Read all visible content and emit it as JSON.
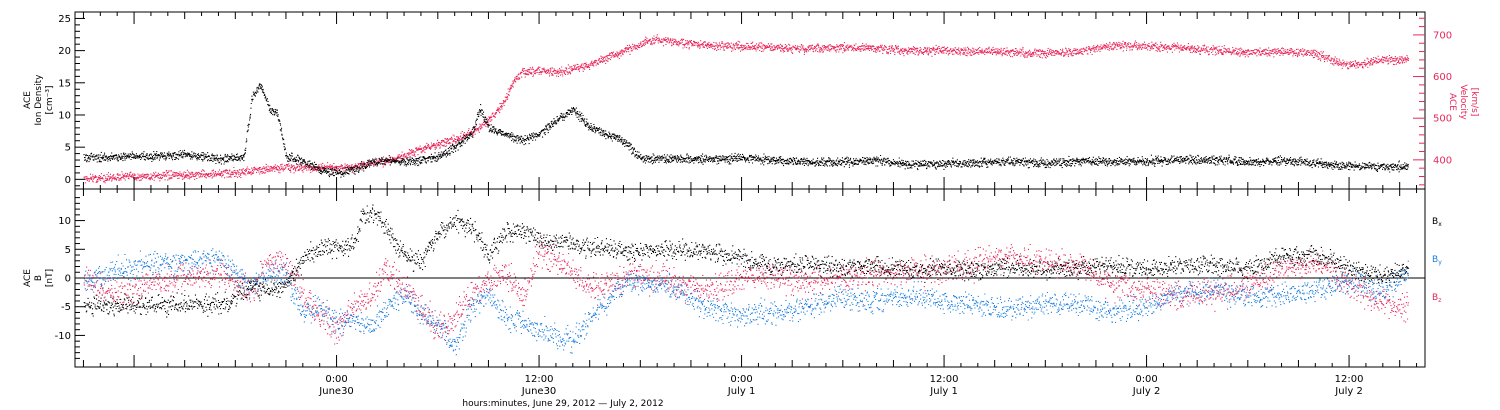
{
  "colors": {
    "black": "#000000",
    "pink": "#e8285a",
    "blue": "#1e7fe0"
  },
  "chart_data": [
    {
      "type": "scatter",
      "panel": "top",
      "ylabel_left": [
        "ACE",
        "Ion Density",
        "[cm⁻³]"
      ],
      "ylabel_right": [
        "ACE",
        "Velocity",
        "[km/s]"
      ],
      "ylim_left": [
        -1.5,
        26
      ],
      "ylim_right": [
        330,
        755
      ],
      "yticks_left": [
        0,
        5,
        10,
        15,
        20,
        25
      ],
      "yticks_right": [
        400,
        500,
        600,
        700
      ],
      "xlim_hours": [
        -15.5,
        64.5
      ],
      "series": [
        {
          "axis": "left",
          "color": "black",
          "jitter": 0.6,
          "points": [
            [
              -15,
              3.3
            ],
            [
              -12,
              3.5
            ],
            [
              -9,
              3.8
            ],
            [
              -7,
              3.2
            ],
            [
              -5.5,
              3.4
            ],
            [
              -5,
              13
            ],
            [
              -4.5,
              14.5
            ],
            [
              -4,
              11
            ],
            [
              -3.5,
              10
            ],
            [
              -3,
              3.5
            ],
            [
              -2,
              2.8
            ],
            [
              -1,
              1.5
            ],
            [
              0,
              1.0
            ],
            [
              1,
              1.4
            ],
            [
              2,
              2.5
            ],
            [
              3,
              3.0
            ],
            [
              4,
              2.8
            ],
            [
              5,
              3.0
            ],
            [
              6,
              3.5
            ],
            [
              7,
              5
            ],
            [
              8,
              7
            ],
            [
              8.5,
              11
            ],
            [
              9,
              8
            ],
            [
              10,
              7
            ],
            [
              11,
              6
            ],
            [
              12,
              7
            ],
            [
              13,
              9
            ],
            [
              14,
              11
            ],
            [
              15,
              8
            ],
            [
              16,
              7
            ],
            [
              17,
              6
            ],
            [
              18,
              3.2
            ],
            [
              20,
              3.2
            ],
            [
              22,
              3.0
            ],
            [
              24,
              3.3
            ],
            [
              26,
              3.0
            ],
            [
              28,
              2.6
            ],
            [
              30,
              2.7
            ],
            [
              32,
              2.9
            ],
            [
              34,
              2.3
            ],
            [
              36,
              2.4
            ],
            [
              38,
              2.6
            ],
            [
              40,
              2.8
            ],
            [
              42,
              2.5
            ],
            [
              44,
              2.8
            ],
            [
              46,
              2.7
            ],
            [
              48,
              2.8
            ],
            [
              50,
              3.0
            ],
            [
              52,
              3.0
            ],
            [
              54,
              2.6
            ],
            [
              56,
              2.9
            ],
            [
              58,
              2.5
            ],
            [
              60,
              2.1
            ],
            [
              62,
              1.9
            ],
            [
              63.5,
              2.0
            ]
          ]
        },
        {
          "axis": "right",
          "color": "pink",
          "jitter": 9,
          "points": [
            [
              -15,
              355
            ],
            [
              -12,
              360
            ],
            [
              -9,
              363
            ],
            [
              -6,
              368
            ],
            [
              -4,
              378
            ],
            [
              -3,
              382
            ],
            [
              -2,
              380
            ],
            [
              -1,
              380
            ],
            [
              0,
              380
            ],
            [
              1,
              382
            ],
            [
              2,
              390
            ],
            [
              3,
              398
            ],
            [
              4,
              410
            ],
            [
              5,
              425
            ],
            [
              6,
              438
            ],
            [
              7,
              448
            ],
            [
              8,
              465
            ],
            [
              9,
              495
            ],
            [
              9.8,
              530
            ],
            [
              10.5,
              590
            ],
            [
              11,
              610
            ],
            [
              12,
              615
            ],
            [
              13,
              610
            ],
            [
              14,
              618
            ],
            [
              15,
              628
            ],
            [
              16,
              645
            ],
            [
              17,
              660
            ],
            [
              18,
              678
            ],
            [
              19,
              690
            ],
            [
              20,
              682
            ],
            [
              22,
              675
            ],
            [
              24,
              672
            ],
            [
              26,
              670
            ],
            [
              28,
              665
            ],
            [
              30,
              670
            ],
            [
              32,
              668
            ],
            [
              34,
              662
            ],
            [
              36,
              663
            ],
            [
              38,
              660
            ],
            [
              40,
              658
            ],
            [
              42,
              655
            ],
            [
              44,
              660
            ],
            [
              46,
              675
            ],
            [
              48,
              672
            ],
            [
              50,
              668
            ],
            [
              52,
              662
            ],
            [
              54,
              658
            ],
            [
              56,
              660
            ],
            [
              58,
              655
            ],
            [
              59,
              638
            ],
            [
              60,
              628
            ],
            [
              61,
              632
            ],
            [
              62,
              640
            ],
            [
              63.5,
              642
            ]
          ]
        }
      ]
    },
    {
      "type": "scatter",
      "panel": "bottom",
      "ylabel": [
        "ACE",
        "B",
        "[nT]"
      ],
      "ylim": [
        -15.5,
        15.5
      ],
      "yticks": [
        -10,
        -5,
        0,
        5,
        10
      ],
      "zero_line": true,
      "legend": [
        {
          "text": "B",
          "sub": "x",
          "color": "black"
        },
        {
          "text": "B",
          "sub": "y",
          "color": "blue"
        },
        {
          "text": "B",
          "sub": "z",
          "color": "pink"
        }
      ],
      "series": [
        {
          "name": "Bx",
          "color": "black",
          "jitter": 1.5,
          "points": [
            [
              -15,
              -4.8
            ],
            [
              -12,
              -4.8
            ],
            [
              -9,
              -4.6
            ],
            [
              -7,
              -4.4
            ],
            [
              -6,
              -3.5
            ],
            [
              -5,
              -1.5
            ],
            [
              -4,
              -2.2
            ],
            [
              -3,
              -1.2
            ],
            [
              -2,
              3
            ],
            [
              -1,
              5.5
            ],
            [
              0,
              5.2
            ],
            [
              1,
              5.8
            ],
            [
              1.5,
              11
            ],
            [
              2.5,
              11
            ],
            [
              3,
              8
            ],
            [
              4,
              4
            ],
            [
              5,
              2.5
            ],
            [
              6,
              8
            ],
            [
              7,
              10
            ],
            [
              8,
              9
            ],
            [
              9,
              4
            ],
            [
              10,
              8
            ],
            [
              11,
              8
            ],
            [
              12,
              7
            ],
            [
              13,
              6
            ],
            [
              14,
              6
            ],
            [
              15,
              5
            ],
            [
              16,
              5.2
            ],
            [
              17,
              4.8
            ],
            [
              18,
              4.5
            ],
            [
              20,
              5
            ],
            [
              22,
              4.5
            ],
            [
              24,
              3.5
            ],
            [
              26,
              2
            ],
            [
              28,
              2.5
            ],
            [
              30,
              1.8
            ],
            [
              32,
              2.2
            ],
            [
              34,
              1.2
            ],
            [
              36,
              1.5
            ],
            [
              38,
              1.2
            ],
            [
              40,
              1.8
            ],
            [
              42,
              1.4
            ],
            [
              44,
              1.8
            ],
            [
              46,
              2.2
            ],
            [
              48,
              1.5
            ],
            [
              50,
              2
            ],
            [
              52,
              2.2
            ],
            [
              54,
              1.8
            ],
            [
              56,
              3.5
            ],
            [
              58,
              4
            ],
            [
              60,
              1.5
            ],
            [
              62,
              0.5
            ],
            [
              63.5,
              1
            ]
          ]
        },
        {
          "name": "By",
          "color": "blue",
          "jitter": 1.8,
          "points": [
            [
              -15,
              -1
            ],
            [
              -13,
              1.5
            ],
            [
              -11,
              2.5
            ],
            [
              -9,
              3
            ],
            [
              -7,
              3.5
            ],
            [
              -6,
              1
            ],
            [
              -5,
              -1.5
            ],
            [
              -4,
              1
            ],
            [
              -3,
              0.5
            ],
            [
              -2,
              -6.5
            ],
            [
              -1,
              -5
            ],
            [
              0,
              -8
            ],
            [
              1,
              -7
            ],
            [
              2,
              -9
            ],
            [
              3,
              -5
            ],
            [
              4,
              -3
            ],
            [
              5,
              -6.5
            ],
            [
              6,
              -8
            ],
            [
              7,
              -12
            ],
            [
              8,
              -5
            ],
            [
              9,
              -3
            ],
            [
              10,
              -7
            ],
            [
              11,
              -8
            ],
            [
              12,
              -9
            ],
            [
              13,
              -10
            ],
            [
              14,
              -11
            ],
            [
              15,
              -7
            ],
            [
              16,
              -4
            ],
            [
              17,
              -1
            ],
            [
              18,
              -0.5
            ],
            [
              20,
              -1.5
            ],
            [
              22,
              -5.5
            ],
            [
              24,
              -6.5
            ],
            [
              26,
              -6
            ],
            [
              28,
              -5
            ],
            [
              30,
              -3.5
            ],
            [
              32,
              -4
            ],
            [
              34,
              -3
            ],
            [
              36,
              -4
            ],
            [
              38,
              -4.5
            ],
            [
              40,
              -5.5
            ],
            [
              42,
              -4.5
            ],
            [
              44,
              -4.5
            ],
            [
              46,
              -6
            ],
            [
              48,
              -5
            ],
            [
              50,
              -2.5
            ],
            [
              52,
              -2
            ],
            [
              54,
              -3.5
            ],
            [
              56,
              -3
            ],
            [
              58,
              -2
            ],
            [
              60,
              -0.5
            ],
            [
              62,
              -2.5
            ],
            [
              63.5,
              1
            ]
          ]
        },
        {
          "name": "Bz",
          "color": "pink",
          "jitter": 2.2,
          "points": [
            [
              -15,
              0
            ],
            [
              -13,
              -3
            ],
            [
              -11,
              -1
            ],
            [
              -9,
              0.5
            ],
            [
              -7,
              1
            ],
            [
              -6,
              -1.5
            ],
            [
              -5,
              -2.5
            ],
            [
              -4,
              3
            ],
            [
              -3,
              2
            ],
            [
              -2,
              -3
            ],
            [
              -1,
              -7
            ],
            [
              0,
              -9
            ],
            [
              1,
              -5
            ],
            [
              2,
              -3
            ],
            [
              3,
              2
            ],
            [
              4,
              -2
            ],
            [
              5,
              -5
            ],
            [
              6,
              -9
            ],
            [
              7,
              -7
            ],
            [
              8,
              -3
            ],
            [
              9,
              -1
            ],
            [
              10,
              1
            ],
            [
              11,
              -4
            ],
            [
              12,
              5
            ],
            [
              13,
              3
            ],
            [
              14,
              1
            ],
            [
              15,
              -2
            ],
            [
              16,
              -1
            ],
            [
              17,
              0
            ],
            [
              18,
              0.5
            ],
            [
              20,
              -1
            ],
            [
              22,
              -2
            ],
            [
              24,
              0
            ],
            [
              26,
              0.5
            ],
            [
              28,
              -1
            ],
            [
              30,
              0
            ],
            [
              32,
              0.5
            ],
            [
              34,
              1
            ],
            [
              36,
              1.5
            ],
            [
              38,
              2.5
            ],
            [
              40,
              4
            ],
            [
              42,
              2.5
            ],
            [
              44,
              2
            ],
            [
              46,
              -1
            ],
            [
              48,
              -2
            ],
            [
              50,
              -3
            ],
            [
              52,
              -2.5
            ],
            [
              54,
              -1.5
            ],
            [
              56,
              1.5
            ],
            [
              58,
              2.5
            ],
            [
              60,
              -1
            ],
            [
              62,
              -4.5
            ],
            [
              63.5,
              -5
            ]
          ]
        }
      ]
    }
  ],
  "xaxis": {
    "major_ticks": [
      {
        "h": 0,
        "time": "0:00",
        "date": "June30"
      },
      {
        "h": 12,
        "time": "12:00",
        "date": "June30"
      },
      {
        "h": 24,
        "time": "0:00",
        "date": "July 1"
      },
      {
        "h": 36,
        "time": "12:00",
        "date": "July 1"
      },
      {
        "h": 48,
        "time": "0:00",
        "date": "July 2"
      },
      {
        "h": 60,
        "time": "12:00",
        "date": "July 2"
      }
    ],
    "title": "hours:minutes, June 29, 2012 — July  2, 2012"
  }
}
